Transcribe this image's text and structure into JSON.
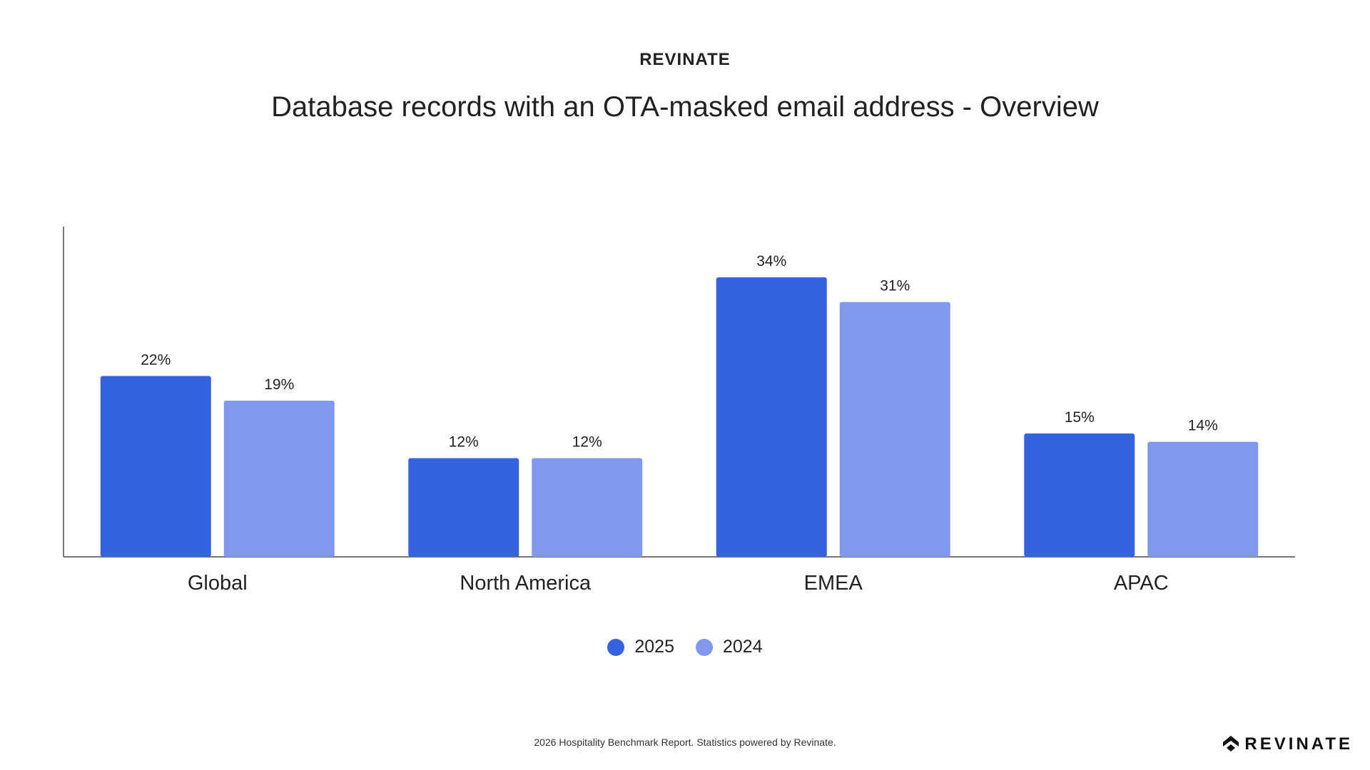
{
  "header": {
    "brand": "REVINATE"
  },
  "chart_data": {
    "type": "bar",
    "title": "Database records with an OTA-masked email address - Overview",
    "categories": [
      "Global",
      "North America",
      "EMEA",
      "APAC"
    ],
    "series": [
      {
        "name": "2025",
        "values": [
          22,
          12,
          34,
          15
        ],
        "labels": [
          "22%",
          "12%",
          "34%",
          "15%"
        ],
        "color": "#3563E0"
      },
      {
        "name": "2024",
        "values": [
          19,
          12,
          31,
          14
        ],
        "labels": [
          "19%",
          "12%",
          "31%",
          "14%"
        ],
        "color": "#8099EC"
      }
    ],
    "xlabel": "",
    "ylabel": "",
    "ylim": [
      0,
      40
    ],
    "grid": false,
    "legend": "bottom"
  },
  "footer": {
    "text": "2026 Hospitality Benchmark Report. Statistics powered by Revinate.",
    "logo": "REVINATE"
  }
}
